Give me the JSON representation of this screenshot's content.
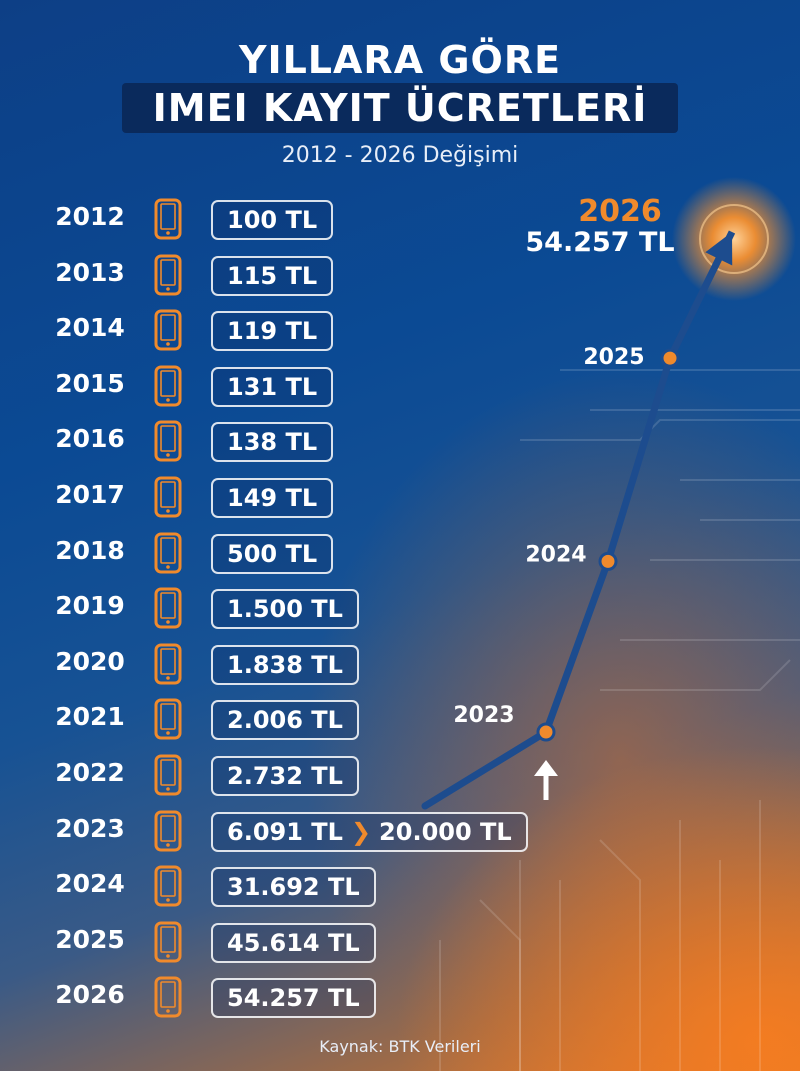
{
  "header": {
    "title_line1": "YILLARA GÖRE",
    "title_line2": "IMEI KAYIT ÜCRETLERİ",
    "subtitle": "2012 - 2026 Değişimi"
  },
  "source": "Kaynak: BTK Verileri",
  "colors": {
    "accent": "#f08a2c",
    "line": "#1d4c8e",
    "title_box": "#0a2a5c"
  },
  "icons": {
    "row_icon": "smartphone-icon",
    "up_arrow": "arrow-up-icon"
  },
  "rows": [
    {
      "year": "2012",
      "fee": "100 TL"
    },
    {
      "year": "2013",
      "fee": "115 TL"
    },
    {
      "year": "2014",
      "fee": "119 TL"
    },
    {
      "year": "2015",
      "fee": "131 TL"
    },
    {
      "year": "2016",
      "fee": "138 TL"
    },
    {
      "year": "2017",
      "fee": "149 TL"
    },
    {
      "year": "2018",
      "fee": "500 TL"
    },
    {
      "year": "2019",
      "fee": "1.500 TL"
    },
    {
      "year": "2020",
      "fee": "1.838 TL"
    },
    {
      "year": "2021",
      "fee": "2.006 TL"
    },
    {
      "year": "2022",
      "fee": "2.732 TL"
    },
    {
      "year": "2023",
      "fee": "6.091 TL",
      "fee_after": "20.000 TL"
    },
    {
      "year": "2024",
      "fee": "31.692 TL"
    },
    {
      "year": "2025",
      "fee": "45.614 TL"
    },
    {
      "year": "2026",
      "fee": "54.257 TL"
    }
  ],
  "chart_data": {
    "type": "line",
    "x": [
      "2023",
      "2024",
      "2025",
      "2026"
    ],
    "values": [
      20000,
      31692,
      45614,
      54257
    ],
    "point_labels": [
      "2023",
      "2024",
      "2025",
      "2026"
    ],
    "end_label_year": "2026",
    "end_label_value": "54.257 TL"
  }
}
